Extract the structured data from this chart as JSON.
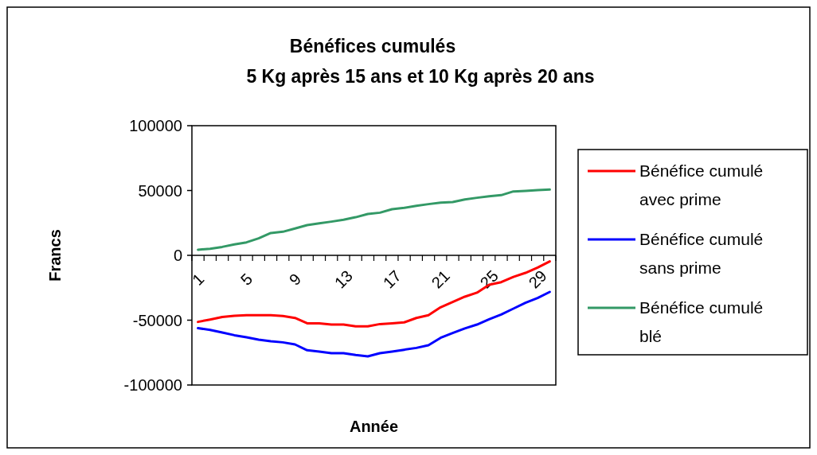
{
  "chart_data": {
    "type": "line",
    "title": "Bénéfices cumulés",
    "subtitle": "5 Kg après 15 ans et 10 Kg après 20 ans",
    "xlabel": "Année",
    "ylabel": "Francs",
    "categories": [
      "1",
      null,
      null,
      null,
      "5",
      null,
      null,
      null,
      "9",
      null,
      null,
      null,
      "13",
      null,
      null,
      null,
      "17",
      null,
      null,
      null,
      "21",
      null,
      null,
      null,
      "25",
      null,
      null,
      null,
      "29",
      null
    ],
    "ylim": [
      -100000,
      100000
    ],
    "yticks": [
      -100000,
      -50000,
      0,
      50000,
      100000
    ],
    "grid": false,
    "legend": "right",
    "marker": "none",
    "series": [
      {
        "name": "Bénéfice cumulé avec prime",
        "color": "#ff0000",
        "values": [
          -51300,
          -49500,
          -47600,
          -46600,
          -46200,
          -46200,
          -46200,
          -46800,
          -48300,
          -52400,
          -52400,
          -53400,
          -53400,
          -54800,
          -54800,
          -53000,
          -52400,
          -51700,
          -48300,
          -46200,
          -40100,
          -36000,
          -31900,
          -28800,
          -22700,
          -20700,
          -16600,
          -13500,
          -9400,
          -4700
        ]
      },
      {
        "name": "Bénéfice cumulé sans prime",
        "color": "#0000ff",
        "values": [
          -56200,
          -57500,
          -59500,
          -61600,
          -63200,
          -65000,
          -66300,
          -67100,
          -68700,
          -73200,
          -74200,
          -75500,
          -75500,
          -76900,
          -77900,
          -75500,
          -74200,
          -72800,
          -71400,
          -69300,
          -63600,
          -59900,
          -56400,
          -53400,
          -49300,
          -45600,
          -41100,
          -36600,
          -32900,
          -28200
        ]
      },
      {
        "name": "Bénéfice cumulé blé",
        "color": "#339966",
        "values": [
          4300,
          5100,
          6500,
          8400,
          10000,
          13100,
          17200,
          18200,
          20700,
          23300,
          24700,
          26000,
          27400,
          29400,
          31900,
          32900,
          35600,
          36600,
          38200,
          39500,
          40700,
          41100,
          43100,
          44400,
          45600,
          46400,
          49300,
          49700,
          50300,
          50700
        ]
      }
    ]
  }
}
